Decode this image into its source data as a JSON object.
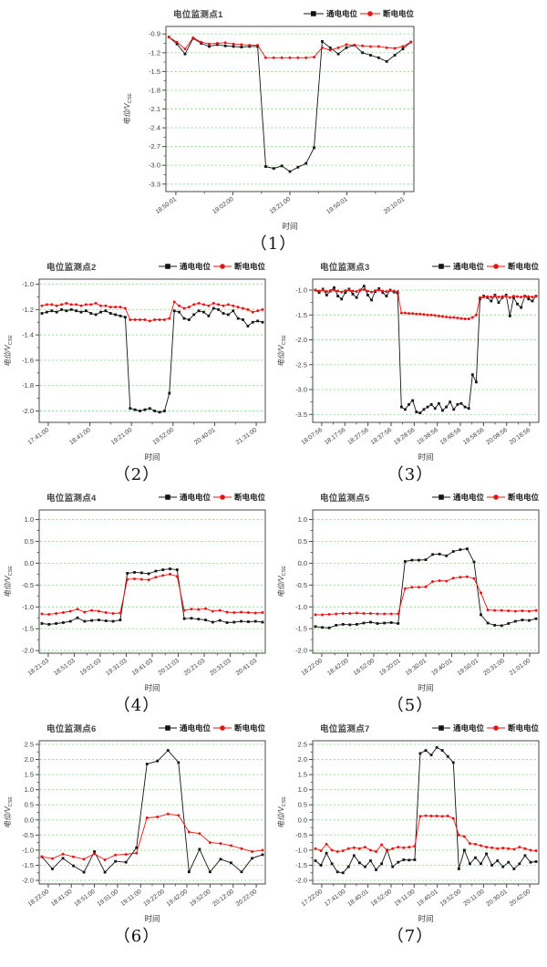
{
  "figure": {
    "background": "#ffffff",
    "axis_color": "#4a4a4a",
    "grid_color": "#7fdc7f",
    "tick_label_color": "#3c3c3c",
    "ylabel": "电位/V",
    "ylabel_sub": "CSE",
    "xlabel": "时间"
  },
  "chart_data": [
    {
      "type": "line",
      "title": "电位监测点1",
      "caption": "（1）",
      "xlabel": "时间",
      "ylabel": "电位/V",
      "ylabel_sub": "CSE",
      "grid": "horizontal-dotted",
      "legend_position": "top-right",
      "ylim": [
        -3.42,
        -0.78
      ],
      "yticks": [
        -0.9,
        -1.2,
        -1.5,
        -1.8,
        -2.1,
        -2.4,
        -2.7,
        -3.0,
        -3.3
      ],
      "xticklabels": [
        "18:50:01",
        "19:02:00",
        "19:21:00",
        "19:50:01",
        "20:10:01"
      ],
      "series": [
        {
          "name": "通电电位",
          "color": "#141414",
          "marker": "square",
          "values": [
            -0.95,
            -1.06,
            -1.22,
            -0.97,
            -1.05,
            -1.1,
            -1.07,
            -1.09,
            -1.1,
            -1.11,
            -1.1,
            -1.1,
            -3.02,
            -3.05,
            -3.01,
            -3.1,
            -3.03,
            -2.97,
            -2.72,
            -1.02,
            -1.12,
            -1.22,
            -1.12,
            -1.08,
            -1.2,
            -1.24,
            -1.28,
            -1.34,
            -1.24,
            -1.14,
            -1.03
          ]
        },
        {
          "name": "断电电位",
          "color": "#e81212",
          "marker": "circle",
          "values": [
            -0.95,
            -1.03,
            -1.14,
            -0.96,
            -1.03,
            -1.06,
            -1.05,
            -1.04,
            -1.06,
            -1.07,
            -1.08,
            -1.08,
            -1.28,
            -1.28,
            -1.28,
            -1.28,
            -1.28,
            -1.28,
            -1.27,
            -1.12,
            -1.16,
            -1.12,
            -1.07,
            -1.08,
            -1.09,
            -1.1,
            -1.1,
            -1.12,
            -1.13,
            -1.1,
            -1.03
          ]
        }
      ]
    },
    {
      "type": "line",
      "title": "电位监测点2",
      "caption": "（2）",
      "xlabel": "时间",
      "ylabel": "电位/V",
      "ylabel_sub": "CSE",
      "grid": "horizontal-dotted",
      "legend_position": "top-right",
      "ylim": [
        -2.09,
        -0.96
      ],
      "yticks": [
        -1.0,
        -1.2,
        -1.4,
        -1.6,
        -1.8,
        -2.0
      ],
      "xticklabels": [
        "17:41:00",
        "18:41:00",
        "19:21:00",
        "19:52:00",
        "20:40:01",
        "21:31:00"
      ],
      "series": [
        {
          "name": "通电电位",
          "color": "#141414",
          "marker": "square",
          "values": [
            -1.23,
            -1.22,
            -1.21,
            -1.22,
            -1.2,
            -1.21,
            -1.2,
            -1.21,
            -1.22,
            -1.21,
            -1.23,
            -1.24,
            -1.22,
            -1.21,
            -1.23,
            -1.24,
            -1.25,
            -1.26,
            -1.98,
            -1.99,
            -2.0,
            -1.99,
            -1.98,
            -2.0,
            -2.01,
            -2.0,
            -1.86,
            -1.21,
            -1.22,
            -1.27,
            -1.28,
            -1.24,
            -1.21,
            -1.22,
            -1.25,
            -1.19,
            -1.2,
            -1.23,
            -1.24,
            -1.21,
            -1.27,
            -1.28,
            -1.33,
            -1.3,
            -1.29,
            -1.3
          ]
        },
        {
          "name": "断电电位",
          "color": "#e81212",
          "marker": "circle",
          "values": [
            -1.17,
            -1.16,
            -1.16,
            -1.17,
            -1.16,
            -1.15,
            -1.16,
            -1.16,
            -1.17,
            -1.16,
            -1.16,
            -1.15,
            -1.17,
            -1.17,
            -1.18,
            -1.18,
            -1.18,
            -1.19,
            -1.28,
            -1.28,
            -1.28,
            -1.28,
            -1.29,
            -1.28,
            -1.28,
            -1.28,
            -1.27,
            -1.14,
            -1.17,
            -1.19,
            -1.18,
            -1.16,
            -1.15,
            -1.16,
            -1.17,
            -1.15,
            -1.16,
            -1.17,
            -1.16,
            -1.17,
            -1.18,
            -1.19,
            -1.2,
            -1.22,
            -1.21,
            -1.2
          ]
        }
      ]
    },
    {
      "type": "line",
      "title": "电位监测点3",
      "caption": "（3）",
      "xlabel": "时间",
      "ylabel": "电位/V",
      "ylabel_sub": "CSE",
      "grid": "horizontal-dotted",
      "legend_position": "top-right",
      "ylim": [
        -3.66,
        -0.78
      ],
      "yticks": [
        -1.0,
        -1.5,
        -2.0,
        -2.5,
        -3.0,
        -3.5
      ],
      "xticklabels": [
        "18:07:56",
        "18:17:56",
        "18:27:56",
        "18:37:56",
        "19:28:56",
        "19:38:56",
        "19:48:56",
        "19:58:56",
        "20:08:56",
        "20:18:56"
      ],
      "series": [
        {
          "name": "通电电位",
          "color": "#141414",
          "marker": "square",
          "values": [
            -1.0,
            -1.05,
            -0.98,
            -1.1,
            -1.02,
            -0.95,
            -1.12,
            -1.18,
            -1.05,
            -0.98,
            -1.08,
            -1.15,
            -1.0,
            -0.92,
            -1.1,
            -1.2,
            -1.03,
            -0.97,
            -1.05,
            -1.12,
            -1.0,
            -1.04,
            -1.06,
            -3.35,
            -3.4,
            -3.3,
            -3.22,
            -3.45,
            -3.47,
            -3.4,
            -3.35,
            -3.3,
            -3.38,
            -3.28,
            -3.42,
            -3.35,
            -3.25,
            -3.4,
            -3.3,
            -3.28,
            -3.35,
            -3.38,
            -2.7,
            -2.85,
            -1.18,
            -1.12,
            -1.15,
            -1.22,
            -1.1,
            -1.25,
            -1.15,
            -1.1,
            -1.52,
            -1.15,
            -1.28,
            -1.35,
            -1.12,
            -1.18,
            -1.22,
            -1.12
          ]
        },
        {
          "name": "断电电位",
          "color": "#e81212",
          "marker": "circle",
          "values": [
            -1.0,
            -1.02,
            -1.0,
            -1.03,
            -1.01,
            -1.0,
            -1.02,
            -1.04,
            -1.01,
            -1.0,
            -1.02,
            -1.03,
            -1.0,
            -0.99,
            -1.02,
            -1.04,
            -1.01,
            -1.0,
            -1.02,
            -1.03,
            -1.01,
            -1.02,
            -1.03,
            -1.46,
            -1.46,
            -1.47,
            -1.47,
            -1.48,
            -1.48,
            -1.49,
            -1.5,
            -1.5,
            -1.51,
            -1.52,
            -1.53,
            -1.54,
            -1.55,
            -1.55,
            -1.56,
            -1.57,
            -1.58,
            -1.58,
            -1.55,
            -1.5,
            -1.15,
            -1.14,
            -1.13,
            -1.14,
            -1.12,
            -1.14,
            -1.13,
            -1.12,
            -1.15,
            -1.12,
            -1.13,
            -1.14,
            -1.12,
            -1.13,
            -1.14,
            -1.12
          ]
        }
      ]
    },
    {
      "type": "line",
      "title": "电位监测点4",
      "caption": "（4）",
      "xlabel": "时间",
      "ylabel": "电位/V",
      "ylabel_sub": "CSE",
      "grid": "horizontal-dotted",
      "legend_position": "top-right",
      "ylim": [
        -2.06,
        1.22
      ],
      "yticks": [
        1.0,
        0.5,
        0.0,
        -0.5,
        -1.0,
        -1.5,
        -2.0
      ],
      "xticklabels": [
        "18:21:03",
        "18:51:03",
        "19:01:03",
        "19:31:03",
        "19:41:03",
        "20:11:03",
        "20:21:03",
        "20:31:03",
        "20:41:03"
      ],
      "series": [
        {
          "name": "通电电位",
          "color": "#141414",
          "marker": "square",
          "values": [
            -1.38,
            -1.4,
            -1.38,
            -1.36,
            -1.33,
            -1.25,
            -1.33,
            -1.31,
            -1.3,
            -1.32,
            -1.33,
            -1.3,
            -0.23,
            -0.21,
            -0.22,
            -0.24,
            -0.18,
            -0.15,
            -0.13,
            -0.15,
            -1.27,
            -1.26,
            -1.28,
            -1.3,
            -1.35,
            -1.31,
            -1.36,
            -1.35,
            -1.33,
            -1.34,
            -1.33,
            -1.35
          ]
        },
        {
          "name": "断电电位",
          "color": "#e81212",
          "marker": "circle",
          "values": [
            -1.16,
            -1.17,
            -1.15,
            -1.13,
            -1.1,
            -1.05,
            -1.12,
            -1.08,
            -1.1,
            -1.13,
            -1.15,
            -1.14,
            -0.37,
            -0.36,
            -0.37,
            -0.38,
            -0.32,
            -0.28,
            -0.25,
            -0.3,
            -1.08,
            -1.05,
            -1.06,
            -1.04,
            -1.1,
            -1.08,
            -1.12,
            -1.13,
            -1.12,
            -1.13,
            -1.14,
            -1.13
          ]
        }
      ]
    },
    {
      "type": "line",
      "title": "电位监测点5",
      "caption": "（5）",
      "xlabel": "时间",
      "ylabel": "电位/V",
      "ylabel_sub": "CSE",
      "grid": "horizontal-dotted",
      "legend_position": "top-right",
      "ylim": [
        -2.06,
        1.22
      ],
      "yticks": [
        1.0,
        0.5,
        0.0,
        -0.5,
        -1.0,
        -1.5,
        -2.0
      ],
      "xticklabels": [
        "18:22:00",
        "18:42:00",
        "18:52:00",
        "19:20:01",
        "19:30:01",
        "19:40:01",
        "19:50:01",
        "20:31:00",
        "21:01:00"
      ],
      "series": [
        {
          "name": "通电电位",
          "color": "#141414",
          "marker": "square",
          "values": [
            -1.45,
            -1.47,
            -1.48,
            -1.42,
            -1.4,
            -1.41,
            -1.4,
            -1.37,
            -1.35,
            -1.38,
            -1.37,
            -1.36,
            -1.38,
            0.04,
            0.07,
            0.07,
            0.08,
            0.2,
            0.21,
            0.17,
            0.27,
            0.31,
            0.33,
            0.03,
            -1.18,
            -1.37,
            -1.42,
            -1.43,
            -1.38,
            -1.33,
            -1.3,
            -1.31,
            -1.27
          ]
        },
        {
          "name": "断电电位",
          "color": "#e81212",
          "marker": "circle",
          "values": [
            -1.18,
            -1.18,
            -1.17,
            -1.16,
            -1.15,
            -1.15,
            -1.14,
            -1.15,
            -1.15,
            -1.16,
            -1.16,
            -1.16,
            -1.16,
            -0.58,
            -0.55,
            -0.55,
            -0.54,
            -0.42,
            -0.4,
            -0.41,
            -0.34,
            -0.32,
            -0.31,
            -0.35,
            -0.68,
            -1.07,
            -1.08,
            -1.08,
            -1.09,
            -1.1,
            -1.09,
            -1.1,
            -1.08
          ]
        }
      ]
    },
    {
      "type": "line",
      "title": "电位监测点6",
      "caption": "（6）",
      "xlabel": "时间",
      "ylabel": "电位/V",
      "ylabel_sub": "CSE",
      "grid": "horizontal-dotted",
      "legend_position": "top-right",
      "ylim": [
        -2.12,
        2.62
      ],
      "yticks": [
        2.5,
        2.0,
        1.5,
        1.0,
        0.5,
        0.0,
        -0.5,
        -1.0,
        -1.5,
        -2.0
      ],
      "xticklabels": [
        "18:22:00",
        "18:41:00",
        "18:51:00",
        "19:01:00",
        "19:11:00",
        "19:22:00",
        "19:42:00",
        "19:52:00",
        "20:12:00",
        "20:22:00"
      ],
      "series": [
        {
          "name": "通电电位",
          "color": "#141414",
          "marker": "square",
          "values": [
            -1.22,
            -1.62,
            -1.27,
            -1.52,
            -1.73,
            -1.05,
            -1.73,
            -1.37,
            -1.4,
            -0.92,
            1.85,
            1.95,
            2.3,
            1.9,
            -1.72,
            -0.97,
            -1.72,
            -1.3,
            -1.42,
            -1.72,
            -1.27,
            -1.15
          ]
        },
        {
          "name": "断电电位",
          "color": "#e81212",
          "marker": "circle",
          "values": [
            -1.22,
            -1.28,
            -1.13,
            -1.22,
            -1.3,
            -1.12,
            -1.32,
            -1.16,
            -1.14,
            -1.1,
            0.07,
            0.1,
            0.2,
            0.15,
            -0.4,
            -0.45,
            -0.75,
            -0.78,
            -0.85,
            -0.95,
            -1.05,
            -1.0
          ]
        }
      ]
    },
    {
      "type": "line",
      "title": "电位监测点7",
      "caption": "（7）",
      "xlabel": "时间",
      "ylabel": "电位/V",
      "ylabel_sub": "CSE",
      "grid": "horizontal-dotted",
      "legend_position": "top-right",
      "ylim": [
        -2.12,
        2.62
      ],
      "yticks": [
        2.5,
        2.0,
        1.5,
        1.0,
        0.5,
        0.0,
        -0.5,
        -1.0,
        -1.5,
        -2.0
      ],
      "xticklabels": [
        "17:22:00",
        "17:41:00",
        "18:40:01",
        "18:52:00",
        "19:11:00",
        "19:40:01",
        "19:52:00",
        "20:11:00",
        "20:30:01",
        "20:42:00"
      ],
      "series": [
        {
          "name": "通电电位",
          "color": "#141414",
          "marker": "square",
          "values": [
            -1.35,
            -1.5,
            -1.1,
            -1.45,
            -1.72,
            -1.75,
            -1.55,
            -1.18,
            -1.42,
            -1.55,
            -1.35,
            -1.65,
            -1.45,
            -1.0,
            -1.55,
            -1.4,
            -1.32,
            -1.33,
            -1.32,
            2.2,
            2.3,
            2.15,
            2.4,
            2.3,
            2.1,
            1.9,
            -1.62,
            -1.0,
            -1.45,
            -1.25,
            -1.45,
            -1.12,
            -1.5,
            -1.35,
            -1.55,
            -1.4,
            -1.62,
            -1.45,
            -1.18,
            -1.4,
            -1.38
          ]
        },
        {
          "name": "断电电位",
          "color": "#e81212",
          "marker": "circle",
          "values": [
            -0.95,
            -1.02,
            -0.8,
            -1.0,
            -1.05,
            -1.02,
            -0.95,
            -0.92,
            -0.95,
            -0.9,
            -1.0,
            -1.05,
            -0.82,
            -1.02,
            -0.95,
            -0.9,
            -0.92,
            -0.9,
            -0.87,
            0.12,
            0.14,
            0.13,
            0.13,
            0.12,
            0.13,
            0.05,
            -0.5,
            -0.55,
            -0.78,
            -0.8,
            -0.85,
            -0.9,
            -0.92,
            -0.95,
            -0.93,
            -0.95,
            -0.97,
            -0.9,
            -0.95,
            -1.0,
            -1.02
          ]
        }
      ]
    }
  ]
}
